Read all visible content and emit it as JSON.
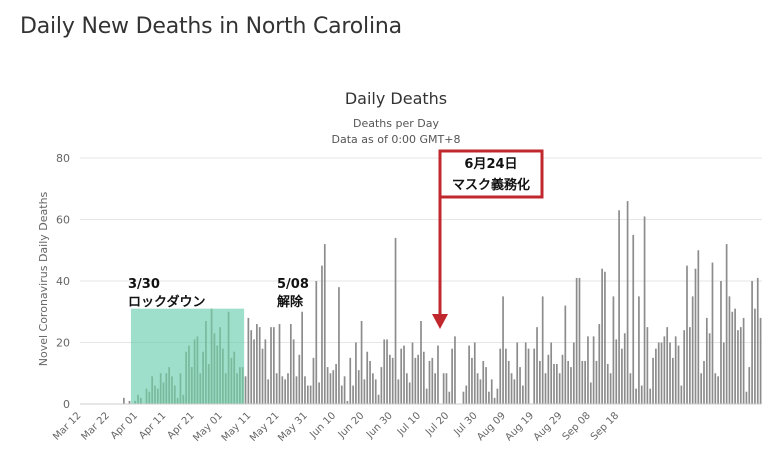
{
  "page": {
    "title": "Daily New Deaths in North Carolina"
  },
  "chart_data": {
    "type": "bar",
    "title": "Daily Deaths",
    "subtitle_lines": [
      "Deaths per Day",
      "Data as of 0:00 GMT+8"
    ],
    "xlabel": "",
    "ylabel": "Novel Coronavirus Daily Deaths",
    "ylim": [
      0,
      80
    ],
    "yticks": [
      0,
      20,
      40,
      60,
      80
    ],
    "grid": true,
    "legend": "none",
    "start_date": "Mar 12",
    "xtick_labels": [
      "Mar 12",
      "Mar 22",
      "Apr 01",
      "Apr 11",
      "Apr 21",
      "May 01",
      "May 11",
      "May 21",
      "May 31",
      "Jun 10",
      "Jun 20",
      "Jun 30",
      "Jul 10",
      "Jul 20",
      "Jul 30",
      "Aug 09",
      "Aug 19",
      "Aug 29",
      "Sep 08",
      "Sep 18"
    ],
    "values": [
      0,
      0,
      0,
      0,
      0,
      0,
      0,
      0,
      0,
      0,
      0,
      0,
      0,
      0,
      0,
      2,
      0,
      1,
      0,
      1,
      3,
      2,
      0,
      5,
      4,
      9,
      6,
      5,
      10,
      7,
      10,
      12,
      9,
      6,
      2,
      10,
      3,
      17,
      19,
      12,
      21,
      22,
      10,
      17,
      27,
      13,
      31,
      23,
      19,
      25,
      18,
      10,
      30,
      15,
      17,
      10,
      12,
      12,
      9,
      28,
      24,
      21,
      26,
      25,
      18,
      21,
      8,
      25,
      25,
      10,
      26,
      9,
      8,
      10,
      26,
      21,
      9,
      16,
      30,
      9,
      6,
      6,
      15,
      40,
      7,
      45,
      52,
      12,
      10,
      11,
      13,
      38,
      6,
      9,
      1,
      15,
      6,
      20,
      11,
      27,
      8,
      17,
      14,
      10,
      8,
      3,
      12,
      21,
      21,
      16,
      15,
      54,
      8,
      18,
      19,
      10,
      7,
      20,
      15,
      16,
      27,
      17,
      5,
      14,
      15,
      10,
      19,
      0,
      10,
      10,
      4,
      18,
      22,
      0,
      0,
      4,
      6,
      19,
      15,
      20,
      10,
      8,
      14,
      12,
      4,
      8,
      2,
      5,
      18,
      35,
      18,
      14,
      10,
      8,
      20,
      12,
      6,
      20,
      18,
      0,
      18,
      25,
      14,
      35,
      10,
      16,
      20,
      13,
      13,
      10,
      16,
      32,
      14,
      12,
      20,
      41,
      41,
      14,
      14,
      22,
      7,
      22,
      14,
      26,
      44,
      43,
      13,
      10,
      35,
      21,
      63,
      18,
      23,
      66,
      10,
      55,
      5,
      35,
      6,
      61,
      25,
      5,
      15,
      18,
      20,
      20,
      22,
      25,
      20,
      15,
      22,
      19,
      6,
      24,
      45,
      25,
      35,
      44,
      50,
      10,
      14,
      28,
      23,
      46,
      10,
      9,
      40,
      20,
      52,
      35,
      30,
      31,
      24,
      25,
      28,
      4,
      12,
      40,
      31,
      41,
      28
    ],
    "annotations": [
      {
        "id": "lockdown-start",
        "lines": [
          "3/30",
          "ロックダウン"
        ]
      },
      {
        "id": "lockdown-end",
        "lines": [
          "5/08",
          "解除"
        ]
      },
      {
        "id": "mask-mandate",
        "lines": [
          "6月24日",
          "マスク義務化"
        ]
      }
    ],
    "colors": {
      "bar": "#8c8c8c",
      "lockdown_bar": "#7ab99c",
      "shade": "#5cc9a6",
      "arrow": "#c0282d",
      "grid": "#e6e6e6"
    }
  }
}
